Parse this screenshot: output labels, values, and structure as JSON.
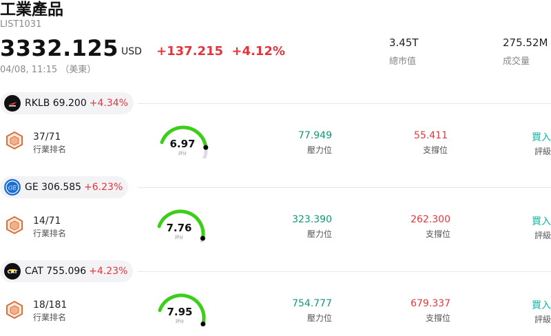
{
  "header": {
    "title": "工業產品",
    "code": "LIST1031",
    "price": "3332.125",
    "currency": "USD",
    "change": "+137.215",
    "change_pct": "+4.12%",
    "time": "04/08, 11:15 （美東）",
    "market_cap_value": "3.45T",
    "market_cap_label": "總市值",
    "volume_value": "275.52M",
    "volume_label": "成交量"
  },
  "colors": {
    "up_red": "#e5343b",
    "green": "#0c9a77",
    "teal": "#12b3a2",
    "gauge_green": "#3ccf19",
    "gauge_gray": "#dcdce6"
  },
  "stocks": [
    {
      "symbol_price": "RKLB 69.200",
      "pct": "+4.34%",
      "logo": "rocket-lab-logo",
      "rank": "37/71",
      "rank_label": "行業排名",
      "score": "6.97",
      "score_label": "評分",
      "score_fraction": 0.697,
      "resistance": "77.949",
      "resistance_label": "壓力位",
      "support": "55.411",
      "support_label": "支撐位",
      "rating": "買入",
      "rating_label": "評級"
    },
    {
      "symbol_price": "GE 306.585",
      "pct": "+6.23%",
      "logo": "ge-logo",
      "rank": "14/71",
      "rank_label": "行業排名",
      "score": "7.76",
      "score_label": "評分",
      "score_fraction": 0.776,
      "resistance": "323.390",
      "resistance_label": "壓力位",
      "support": "262.300",
      "support_label": "支撐位",
      "rating": "買入",
      "rating_label": "評級"
    },
    {
      "symbol_price": "CAT 755.096",
      "pct": "+4.23%",
      "logo": "cat-logo",
      "logo_text": "CAT",
      "rank": "18/181",
      "rank_label": "行業排名",
      "score": "7.95",
      "score_label": "評分",
      "score_fraction": 0.795,
      "resistance": "754.777",
      "resistance_label": "壓力位",
      "support": "679.337",
      "support_label": "支撐位",
      "rating": "買入",
      "rating_label": "評級"
    }
  ]
}
